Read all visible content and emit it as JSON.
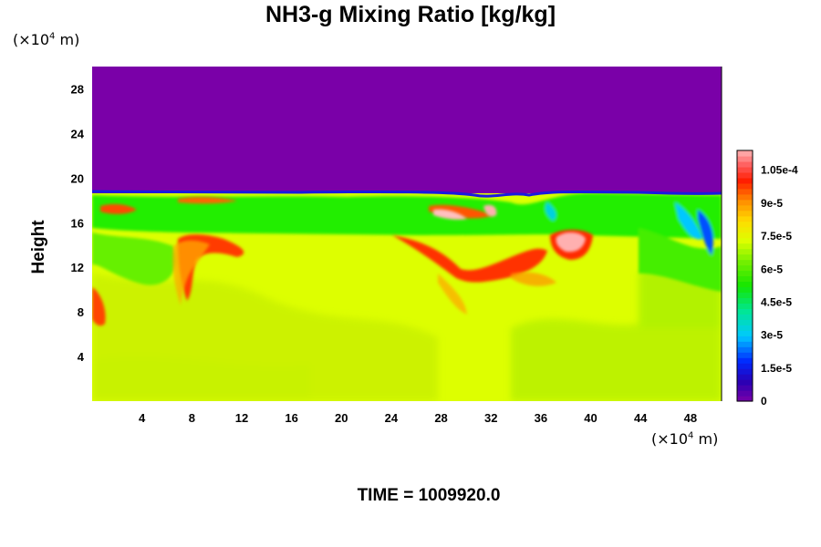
{
  "chart_data": {
    "type": "heatmap",
    "title": "NH3-g Mixing Ratio [kg/kg]",
    "ylabel": "Height",
    "x_unit": "(×10⁴ m)",
    "y_unit": "(×10⁴ m)",
    "x_unit_base": "(×10",
    "x_unit_exp": "4",
    "x_unit_tail": " m)",
    "y_unit_base": "(×10",
    "y_unit_exp": "4",
    "y_unit_tail": " m)",
    "xlim": [
      0,
      50.5
    ],
    "ylim": [
      0,
      30
    ],
    "x_ticks": [
      "4",
      "8",
      "12",
      "16",
      "20",
      "24",
      "28",
      "32",
      "36",
      "40",
      "44",
      "48"
    ],
    "y_ticks": [
      "4",
      "8",
      "12",
      "16",
      "20",
      "24",
      "28"
    ],
    "colorbar": {
      "min": 0,
      "max": 0.000114,
      "tick_values": [
        0,
        1.5e-05,
        3e-05,
        4.5e-05,
        6e-05,
        7.5e-05,
        9e-05,
        0.000105
      ],
      "tick_labels": [
        "0",
        "1.5e-5",
        "3e-5",
        "4.5e-5",
        "6e-5",
        "7.5e-5",
        "9e-5",
        "1.05e-4"
      ]
    },
    "field_summary": {
      "upper_region_value": 0,
      "boundary_height": 18.5,
      "lower_region_value": 7.2e-05,
      "band_heights": [
        15.5,
        18.5
      ],
      "band_value": 6e-05,
      "peak_value": 0.00011
    },
    "colors": {
      "background": "#7a00a8",
      "lower": "#ddff00",
      "band": "#22ee00",
      "high": "#ff2a00",
      "peak": "#ffb0b0"
    }
  },
  "footer": {
    "time_label": "TIME = 1009920.0"
  }
}
